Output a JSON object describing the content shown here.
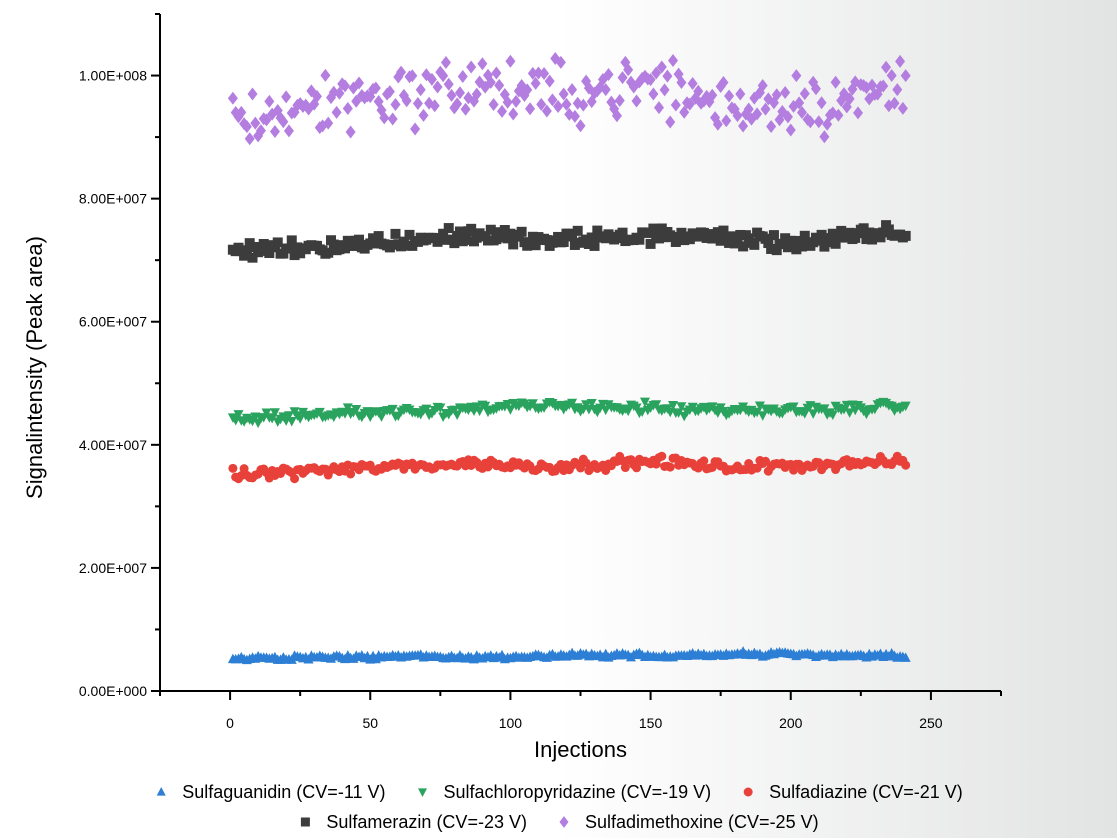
{
  "chart_data": {
    "type": "scatter",
    "title": "",
    "xlabel": "Injections",
    "ylabel": "Signalintensity (Peak area)",
    "xlim": [
      -25,
      275
    ],
    "ylim": [
      0,
      110000000
    ],
    "x_ticks": [
      {
        "value": 0,
        "label": "0"
      },
      {
        "value": 50,
        "label": "50"
      },
      {
        "value": 100,
        "label": "100"
      },
      {
        "value": 150,
        "label": "150"
      },
      {
        "value": 200,
        "label": "200"
      },
      {
        "value": 250,
        "label": "250"
      }
    ],
    "y_ticks": [
      {
        "value": 0,
        "label": "0.00E+000"
      },
      {
        "value": 20000000,
        "label": "2.00E+007"
      },
      {
        "value": 40000000,
        "label": "4.00E+007"
      },
      {
        "value": 60000000,
        "label": "6.00E+007"
      },
      {
        "value": 80000000,
        "label": "8.00E+007"
      },
      {
        "value": 100000000,
        "label": "1.00E+008"
      }
    ],
    "grid": false,
    "legend_position": "bottom",
    "x": {
      "start": 1,
      "end": 241
    },
    "series": [
      {
        "name": "Sulfaguanidin (CV=-11 V)",
        "marker": "triangle-up",
        "color": "#2c7fd4",
        "values": [
          5200000,
          5350000,
          5500000,
          5600000,
          5450000,
          5650000,
          5800000,
          5750000,
          5900000,
          6000000,
          5700000,
          5600000
        ]
      },
      {
        "name": "Sulfachloropyridazine (CV=-19 V)",
        "marker": "triangle-down",
        "color": "#2aa35e",
        "values": [
          44200000,
          44800000,
          45200000,
          45600000,
          45900000,
          46200000,
          46300000,
          45800000,
          45400000,
          45600000,
          45900000,
          46300000
        ]
      },
      {
        "name": "Sulfadiazine (CV=-21 V)",
        "marker": "circle",
        "color": "#e8413a",
        "values": [
          35000000,
          35700000,
          36100000,
          36600000,
          37000000,
          36400000,
          36900000,
          37300000,
          36300000,
          36600000,
          37000000,
          37200000
        ]
      },
      {
        "name": "Sulfamerazin (CV=-23 V)",
        "marker": "square",
        "color": "#3c3c3c",
        "values": [
          71500000,
          72100000,
          72600000,
          73300000,
          74200000,
          73000000,
          73500000,
          74100000,
          73700000,
          72800000,
          73500000,
          74600000
        ]
      },
      {
        "name": "Sulfadimethoxine (CV=-25 V)",
        "marker": "diamond",
        "color": "#b47ee0",
        "values": [
          92500000,
          94200000,
          96800000,
          97000000,
          98500000,
          96500000,
          97800000,
          98400000,
          95000000,
          96200000,
          95600000,
          98700000
        ]
      }
    ]
  }
}
